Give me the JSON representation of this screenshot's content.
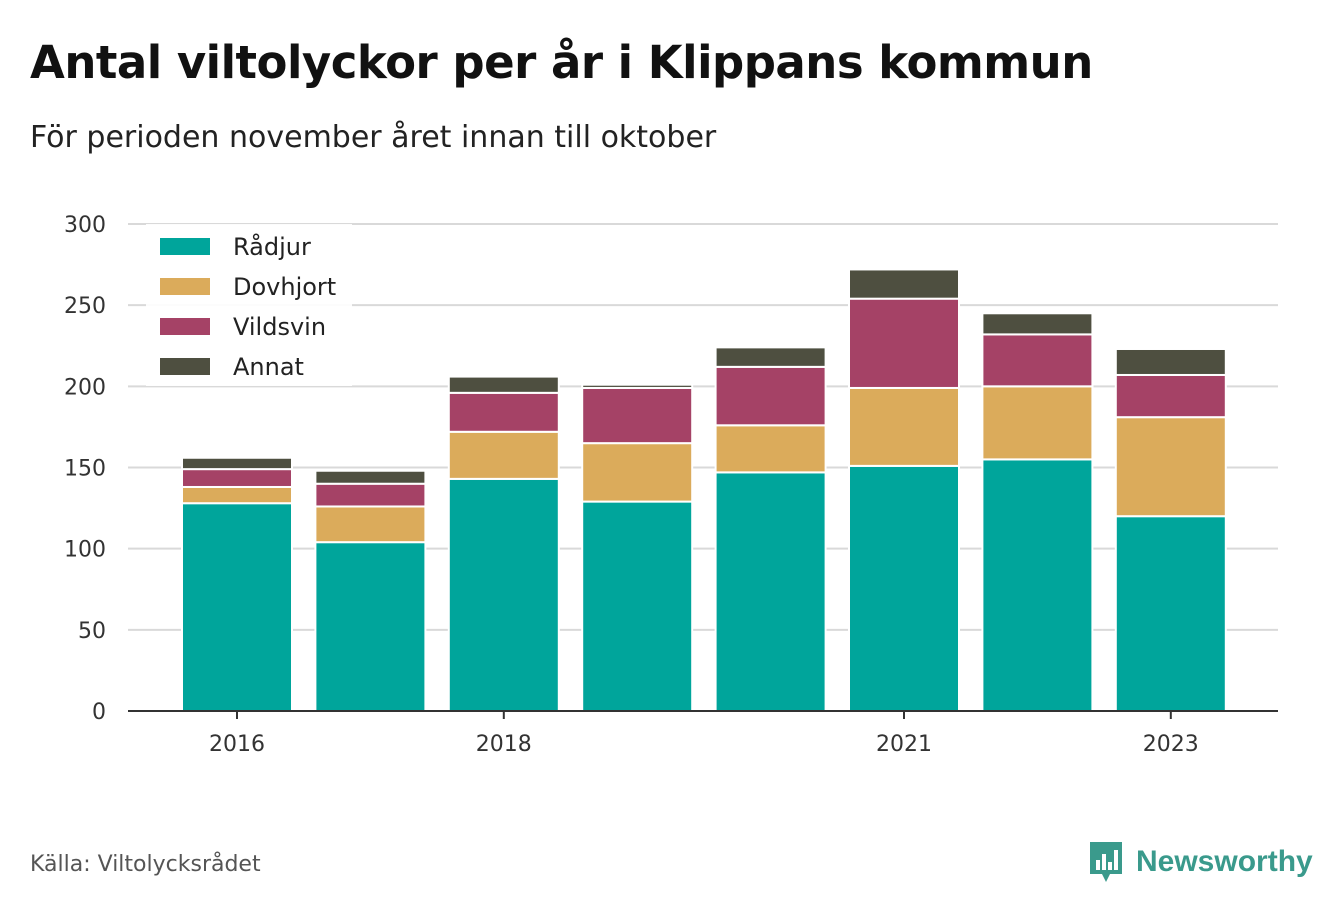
{
  "header": {
    "title": "Antal viltolyckor per år i Klippans kommun",
    "subtitle": "För perioden november året innan till oktober"
  },
  "footer": {
    "source": "Källa: Viltolycksrådet",
    "brand": "Newsworthy",
    "brand_icon": "bar-chart-logo-icon",
    "brand_color": "#3a9a8c"
  },
  "chart_data": {
    "type": "bar",
    "stacked": true,
    "x": [
      2016,
      2017,
      2018,
      2019,
      2020,
      2021,
      2022,
      2023
    ],
    "x_tick_labels": [
      "2016",
      "2018",
      "2021",
      "2023"
    ],
    "x_tick_values": [
      2016,
      2018,
      2021,
      2023
    ],
    "y_ticks": [
      0,
      50,
      100,
      150,
      200,
      250,
      300
    ],
    "ylim": [
      0,
      300
    ],
    "grid": "horizontal",
    "legend_position": "top-left",
    "series": [
      {
        "name": "Rådjur",
        "color": "#00a59b",
        "values": [
          128,
          104,
          143,
          129,
          147,
          151,
          155,
          120
        ]
      },
      {
        "name": "Dovhjort",
        "color": "#dbab5b",
        "values": [
          10,
          22,
          29,
          36,
          29,
          48,
          45,
          61
        ]
      },
      {
        "name": "Vildsvin",
        "color": "#a54266",
        "values": [
          11,
          14,
          24,
          34,
          36,
          55,
          32,
          26
        ]
      },
      {
        "name": "Annat",
        "color": "#4e4f40",
        "values": [
          7,
          8,
          10,
          2,
          12,
          18,
          13,
          16
        ]
      }
    ]
  }
}
